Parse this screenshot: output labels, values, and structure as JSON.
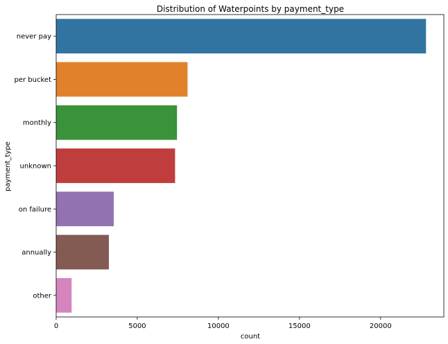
{
  "chart_data": {
    "type": "bar",
    "orientation": "horizontal",
    "title": "Distribution of Waterpoints by payment_type",
    "xlabel": "count",
    "ylabel": "payment_type",
    "categories": [
      "never pay",
      "per bucket",
      "monthly",
      "unknown",
      "on failure",
      "annually",
      "other"
    ],
    "values": [
      22800,
      8100,
      7450,
      7330,
      3550,
      3250,
      950
    ],
    "colors": [
      "#3274a1",
      "#e1812c",
      "#3a923a",
      "#c03d3e",
      "#9372b2",
      "#845b53",
      "#d684bd"
    ],
    "xlim": [
      0,
      23900
    ],
    "xticks": [
      0,
      5000,
      10000,
      15000,
      20000
    ],
    "grid": false,
    "legend": "none"
  }
}
